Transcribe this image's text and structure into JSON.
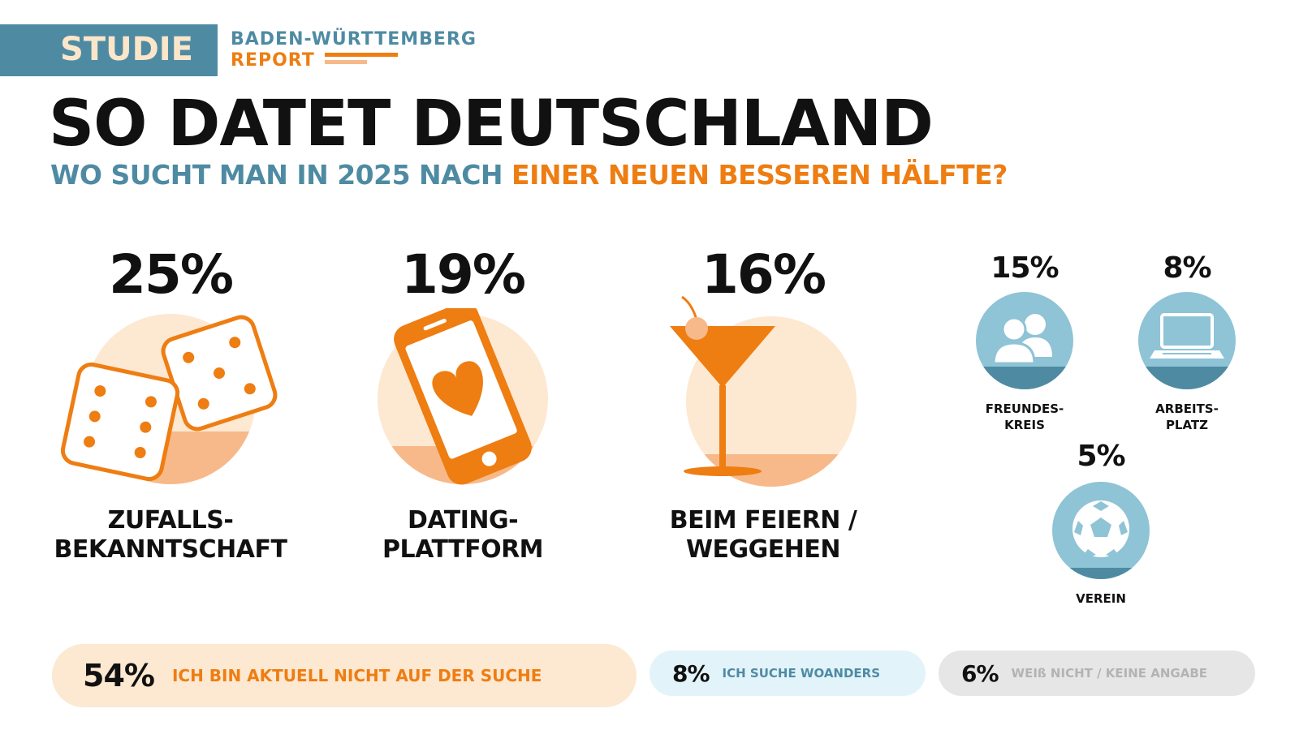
{
  "header": {
    "badge": "STUDIE",
    "report_line1": "BADEN-WÜRTTEMBERG",
    "report_line2": "REPORT"
  },
  "title": "SO DATET DEUTSCHLAND",
  "subtitle": {
    "part1": "WO SUCHT MAN IN 2025 NACH",
    "part2": "EINER NEUEN BESSEREN HÄLFTE?"
  },
  "colors": {
    "blue": "#4e8ba3",
    "orange": "#ee7d12",
    "peach": "#fde8d1",
    "light_blue": "#e3f3fa",
    "grey": "#e6e6e6"
  },
  "chart_data": {
    "type": "pictogram",
    "title": "SO DATET DEUTSCHLAND",
    "subtitle": "WO SUCHT MAN IN 2025 NACH EINER NEUEN BESSEREN HÄLFTE?",
    "categories": [
      {
        "pct": "25%",
        "value": 25,
        "label_line1": "ZUFALLS-",
        "label_line2": "BEKANNTSCHAFT",
        "icon": "dice-icon"
      },
      {
        "pct": "19%",
        "value": 19,
        "label_line1": "DATING-",
        "label_line2": "PLATTFORM",
        "icon": "smartphone-heart-icon"
      },
      {
        "pct": "16%",
        "value": 16,
        "label_line1": "BEIM FEIERN /",
        "label_line2": "WEGGEHEN",
        "icon": "cocktail-icon"
      },
      {
        "pct": "15%",
        "value": 15,
        "label_line1": "FREUNDES-",
        "label_line2": "KREIS",
        "icon": "people-icon"
      },
      {
        "pct": "8%",
        "value": 8,
        "label_line1": "ARBEITS-",
        "label_line2": "PLATZ",
        "icon": "laptop-icon"
      },
      {
        "pct": "5%",
        "value": 5,
        "label_line1": "VEREIN",
        "label_line2": "",
        "icon": "football-icon"
      }
    ],
    "other": [
      {
        "pct": "54%",
        "value": 54,
        "label": "ICH BIN AKTUELL NICHT AUF DER SUCHE"
      },
      {
        "pct": "8%",
        "value": 8,
        "label": "ICH SUCHE WOANDERS"
      },
      {
        "pct": "6%",
        "value": 6,
        "label": "WEIß NICHT / KEINE ANGABE"
      }
    ]
  }
}
